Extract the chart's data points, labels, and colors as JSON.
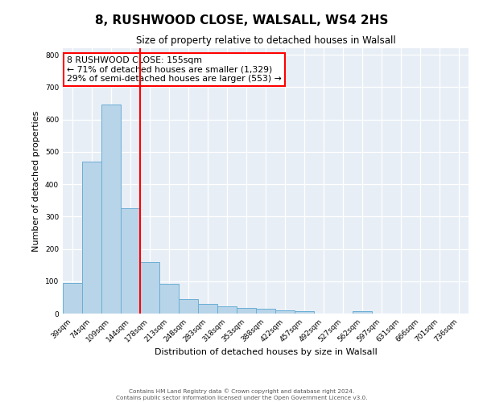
{
  "title": "8, RUSHWOOD CLOSE, WALSALL, WS4 2HS",
  "subtitle": "Size of property relative to detached houses in Walsall",
  "xlabel": "Distribution of detached houses by size in Walsall",
  "ylabel": "Number of detached properties",
  "categories": [
    "39sqm",
    "74sqm",
    "109sqm",
    "144sqm",
    "178sqm",
    "213sqm",
    "248sqm",
    "283sqm",
    "318sqm",
    "353sqm",
    "388sqm",
    "422sqm",
    "457sqm",
    "492sqm",
    "527sqm",
    "562sqm",
    "597sqm",
    "631sqm",
    "666sqm",
    "701sqm",
    "736sqm"
  ],
  "values": [
    95,
    470,
    645,
    325,
    160,
    93,
    45,
    30,
    22,
    18,
    15,
    10,
    7,
    0,
    0,
    8,
    0,
    0,
    0,
    0,
    0
  ],
  "bar_color": "#b8d4e8",
  "bar_edge_color": "#6aaed6",
  "vline_x_index": 3.5,
  "vline_color": "red",
  "ylim": [
    0,
    820
  ],
  "yticks": [
    0,
    100,
    200,
    300,
    400,
    500,
    600,
    700,
    800
  ],
  "annotation_box_text": "8 RUSHWOOD CLOSE: 155sqm\n← 71% of detached houses are smaller (1,329)\n29% of semi-detached houses are larger (553) →",
  "annotation_box_color": "red",
  "background_color": "#e8eef5",
  "footer_line1": "Contains HM Land Registry data © Crown copyright and database right 2024.",
  "footer_line2": "Contains public sector information licensed under the Open Government Licence v3.0."
}
